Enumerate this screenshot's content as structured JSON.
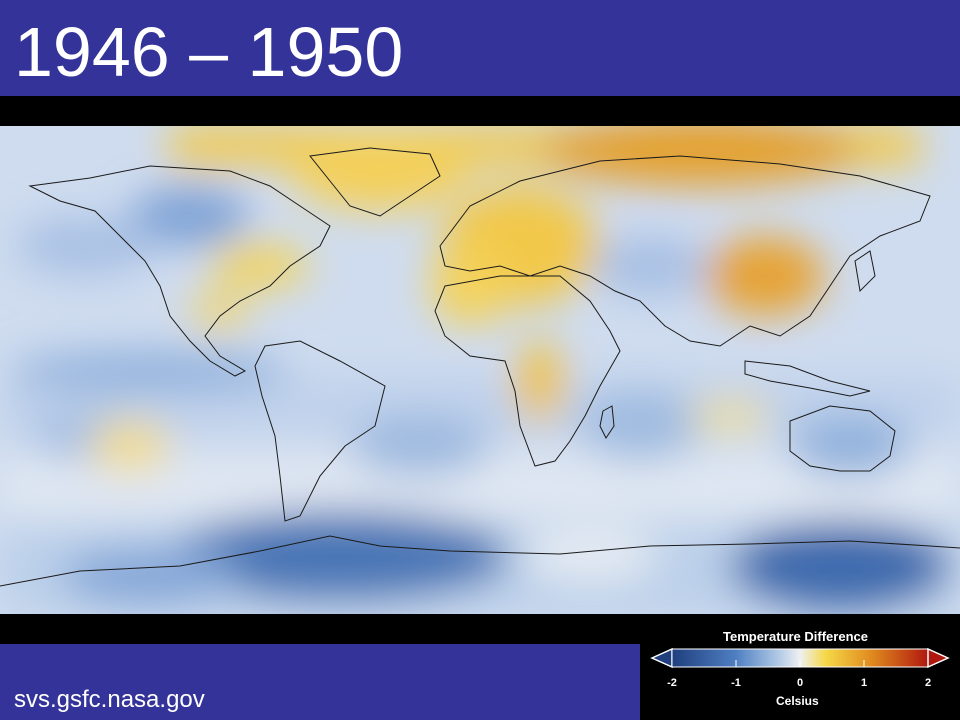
{
  "title": "1946 – 1950",
  "credit": "svs.gsfc.nasa.gov",
  "legend": {
    "title": "Temperature Difference",
    "unit": "Celsius",
    "ticks": [
      "-2",
      "-1",
      "0",
      "1",
      "2"
    ],
    "colors": {
      "deep_blue": "#1f3f7f",
      "mid_blue": "#4f7fc2",
      "light_blue": "#b4cbe6",
      "neutral": "#eef0f2",
      "yellow": "#f5d847",
      "orange": "#e08a1e",
      "dark_red": "#b0180f"
    }
  },
  "map": {
    "projection": "equirectangular world map",
    "colors": {
      "ocean_base": "#c9d8ee",
      "land_outline": "#1a1a1a",
      "anomaly_warm": "#f2c744",
      "anomaly_hot": "#e49a2a",
      "anomaly_cool": "#7ea3d8",
      "anomaly_cold": "#3e6cb0"
    }
  }
}
